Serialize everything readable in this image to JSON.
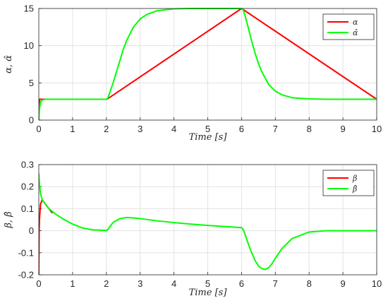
{
  "chart_data": [
    {
      "type": "line",
      "ylabel": "α, α̂",
      "xlabel": "Time  [s]",
      "xlim": [
        0,
        10
      ],
      "ylim": [
        0,
        15
      ],
      "xticks": [
        "0",
        "1",
        "2",
        "3",
        "4",
        "5",
        "6",
        "7",
        "8",
        "9",
        "10"
      ],
      "yticks": [
        "0",
        "5",
        "10",
        "15"
      ],
      "grid": true,
      "legend_position": "top-right",
      "series": [
        {
          "name": "α",
          "color": "#ff0000",
          "x": [
            0,
            0.02,
            2.0,
            2.05,
            6.0,
            10.0
          ],
          "y": [
            0,
            2.8,
            2.8,
            2.9,
            15.0,
            2.8
          ]
        },
        {
          "name": "α̂",
          "color": "#00ff00",
          "x": [
            0,
            0.02,
            0.05,
            0.1,
            0.2,
            0.5,
            1.0,
            1.5,
            2.0,
            2.05,
            2.1,
            2.2,
            2.3,
            2.4,
            2.5,
            2.6,
            2.8,
            3.0,
            3.2,
            3.5,
            4.0,
            4.5,
            5.0,
            5.5,
            6.0,
            6.05,
            6.1,
            6.2,
            6.3,
            6.4,
            6.5,
            6.6,
            6.8,
            7.0,
            7.2,
            7.5,
            8.0,
            8.5,
            9.0,
            9.5,
            10.0
          ],
          "y": [
            0,
            1.5,
            2.4,
            2.7,
            2.8,
            2.8,
            2.8,
            2.8,
            2.8,
            3.0,
            3.7,
            5.0,
            6.5,
            8.0,
            9.5,
            10.7,
            12.5,
            13.6,
            14.2,
            14.7,
            14.95,
            15.0,
            15.0,
            15.0,
            15.0,
            14.8,
            14.1,
            12.4,
            10.6,
            9.0,
            7.6,
            6.5,
            4.8,
            3.9,
            3.4,
            3.0,
            2.85,
            2.8,
            2.8,
            2.8,
            2.8
          ]
        }
      ]
    },
    {
      "type": "line",
      "ylabel": "β, β̂",
      "xlabel": "Time  [s]",
      "xlim": [
        0,
        10
      ],
      "ylim": [
        -0.2,
        0.3
      ],
      "xticks": [
        "0",
        "1",
        "2",
        "3",
        "4",
        "5",
        "6",
        "7",
        "8",
        "9",
        "10"
      ],
      "yticks": [
        "-0.2",
        "-0.1",
        "0",
        "0.1",
        "0.2",
        "0.3"
      ],
      "grid": true,
      "legend_position": "top-right",
      "series": [
        {
          "name": "β",
          "color": "#ff0000",
          "x": [
            0,
            0.005,
            0.01,
            0.02,
            0.05,
            0.1,
            0.2,
            0.4
          ],
          "y": [
            -0.2,
            -0.1,
            0.0,
            0.05,
            0.12,
            0.14,
            0.12,
            0.08
          ]
        },
        {
          "name": "β̂",
          "color": "#00ff00",
          "x": [
            0,
            0.02,
            0.05,
            0.1,
            0.2,
            0.3,
            0.5,
            0.7,
            1.0,
            1.3,
            1.6,
            2.0,
            2.05,
            2.1,
            2.2,
            2.4,
            2.6,
            2.8,
            3.0,
            3.5,
            4.0,
            4.5,
            5.0,
            5.5,
            6.0,
            6.05,
            6.1,
            6.2,
            6.3,
            6.4,
            6.5,
            6.6,
            6.7,
            6.8,
            6.9,
            7.0,
            7.2,
            7.5,
            8.0,
            8.5,
            9.0,
            9.5,
            10.0
          ],
          "y": [
            0.26,
            0.21,
            0.17,
            0.14,
            0.12,
            0.1,
            0.075,
            0.055,
            0.03,
            0.012,
            0.004,
            0.001,
            0.006,
            0.018,
            0.038,
            0.055,
            0.06,
            0.058,
            0.055,
            0.045,
            0.037,
            0.03,
            0.024,
            0.019,
            0.014,
            0.005,
            -0.015,
            -0.06,
            -0.1,
            -0.135,
            -0.16,
            -0.172,
            -0.176,
            -0.168,
            -0.15,
            -0.125,
            -0.08,
            -0.035,
            -0.006,
            0.0,
            0.0,
            0.0,
            0.0
          ]
        }
      ]
    }
  ]
}
